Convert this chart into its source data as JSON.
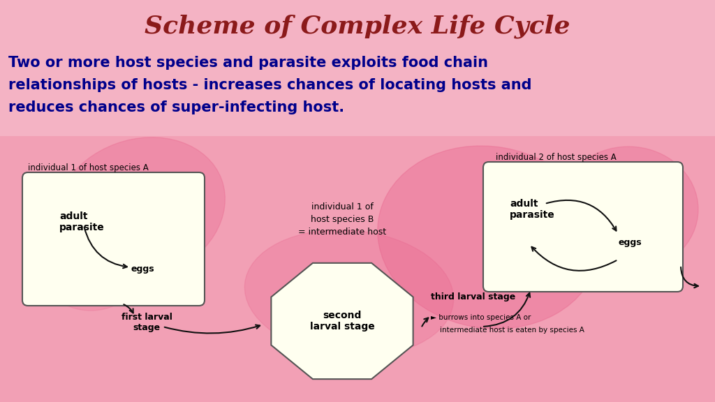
{
  "title": "Scheme of Complex Life Cycle",
  "title_color": "#8B1A1A",
  "title_fontsize": 26,
  "subtitle_line1": "Two or more host species and parasite exploits food chain",
  "subtitle_line2": "relationships of hosts - increases chances of locating hosts and",
  "subtitle_line3": "reduces chances of super-infecting host.",
  "subtitle_color": "#00008B",
  "subtitle_fontsize": 15,
  "bg_color": "#F2A0B5",
  "box_fill": "#FFFFF0",
  "box_edge": "#555555",
  "label_fontsize": 8.5,
  "text_fontsize": 10,
  "arrow_color": "#111111"
}
